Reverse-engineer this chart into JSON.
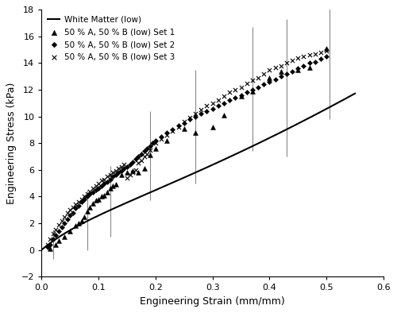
{
  "title": "",
  "xlabel": "Engineering Strain (mm/mm)",
  "ylabel": "Engineering Stress (kPa)",
  "xlim": [
    0.0,
    0.6
  ],
  "ylim": [
    -2,
    18
  ],
  "xticks": [
    0.0,
    0.1,
    0.2,
    0.3,
    0.4,
    0.5,
    0.6
  ],
  "yticks": [
    -2,
    0,
    2,
    4,
    6,
    8,
    10,
    12,
    14,
    16,
    18
  ],
  "legend_labels": [
    "White Matter (low)",
    "50 % A, 50 % B (low) Set 1",
    "50 % A, 50 % B (low) Set 2",
    "50 % A, 50 % B (low) Set 3"
  ],
  "curve_color": "black",
  "curve_lw": 1.5,
  "curve_A": 35.0,
  "curve_B": 8.0,
  "set1_x": [
    0.015,
    0.025,
    0.03,
    0.04,
    0.05,
    0.06,
    0.065,
    0.07,
    0.075,
    0.08,
    0.085,
    0.09,
    0.095,
    0.1,
    0.105,
    0.11,
    0.115,
    0.12,
    0.125,
    0.13,
    0.14,
    0.15,
    0.16,
    0.17,
    0.18,
    0.19,
    0.2,
    0.22,
    0.25,
    0.27,
    0.3,
    0.32,
    0.35,
    0.37,
    0.4,
    0.42,
    0.45,
    0.47,
    0.5
  ],
  "set1_y": [
    0.1,
    0.4,
    0.7,
    1.0,
    1.4,
    1.8,
    2.0,
    2.2,
    2.5,
    2.9,
    3.2,
    3.5,
    3.7,
    3.8,
    4.0,
    4.1,
    4.3,
    4.6,
    4.8,
    4.9,
    5.6,
    5.8,
    5.9,
    5.8,
    6.1,
    7.1,
    7.6,
    8.2,
    9.1,
    8.8,
    9.2,
    10.1,
    11.5,
    11.9,
    12.9,
    13.4,
    13.5,
    13.7,
    15.1
  ],
  "set2_x": [
    0.01,
    0.015,
    0.02,
    0.025,
    0.03,
    0.035,
    0.04,
    0.045,
    0.05,
    0.055,
    0.06,
    0.065,
    0.07,
    0.075,
    0.08,
    0.085,
    0.09,
    0.095,
    0.1,
    0.105,
    0.11,
    0.115,
    0.12,
    0.125,
    0.13,
    0.135,
    0.14,
    0.145,
    0.15,
    0.155,
    0.16,
    0.165,
    0.17,
    0.175,
    0.18,
    0.185,
    0.19,
    0.195,
    0.2,
    0.21,
    0.22,
    0.23,
    0.24,
    0.25,
    0.26,
    0.27,
    0.28,
    0.29,
    0.3,
    0.31,
    0.32,
    0.33,
    0.34,
    0.35,
    0.36,
    0.37,
    0.38,
    0.39,
    0.4,
    0.41,
    0.42,
    0.43,
    0.44,
    0.45,
    0.46,
    0.47,
    0.48,
    0.49,
    0.5
  ],
  "set2_y": [
    0.2,
    0.4,
    0.8,
    1.1,
    1.4,
    1.7,
    2.0,
    2.3,
    2.6,
    2.8,
    3.1,
    3.3,
    3.6,
    3.8,
    4.0,
    4.2,
    4.3,
    4.5,
    4.6,
    4.8,
    5.0,
    5.1,
    5.3,
    5.5,
    5.6,
    5.8,
    5.9,
    6.1,
    6.2,
    6.4,
    6.6,
    6.8,
    7.0,
    7.2,
    7.4,
    7.6,
    7.8,
    8.0,
    8.2,
    8.5,
    8.8,
    9.0,
    9.3,
    9.5,
    9.8,
    10.0,
    10.2,
    10.4,
    10.6,
    10.8,
    11.0,
    11.2,
    11.4,
    11.6,
    11.8,
    12.0,
    12.2,
    12.4,
    12.6,
    12.8,
    13.0,
    13.2,
    13.4,
    13.6,
    13.8,
    14.0,
    14.1,
    14.3,
    14.5
  ],
  "set3_x": [
    0.01,
    0.015,
    0.02,
    0.025,
    0.03,
    0.035,
    0.04,
    0.045,
    0.05,
    0.055,
    0.06,
    0.065,
    0.07,
    0.075,
    0.08,
    0.085,
    0.09,
    0.095,
    0.1,
    0.105,
    0.11,
    0.115,
    0.12,
    0.125,
    0.13,
    0.135,
    0.14,
    0.145,
    0.15,
    0.155,
    0.16,
    0.165,
    0.17,
    0.175,
    0.18,
    0.185,
    0.19,
    0.2,
    0.21,
    0.22,
    0.23,
    0.24,
    0.25,
    0.26,
    0.27,
    0.28,
    0.29,
    0.3,
    0.31,
    0.32,
    0.33,
    0.34,
    0.35,
    0.36,
    0.37,
    0.38,
    0.39,
    0.4,
    0.41,
    0.42,
    0.43,
    0.44,
    0.45,
    0.46,
    0.47,
    0.48,
    0.49,
    0.5
  ],
  "set3_y": [
    0.4,
    0.8,
    1.2,
    1.5,
    1.9,
    2.2,
    2.5,
    2.8,
    3.0,
    3.2,
    3.4,
    3.6,
    3.8,
    4.0,
    4.2,
    4.4,
    4.6,
    4.8,
    5.0,
    5.2,
    5.3,
    5.5,
    5.6,
    5.8,
    5.9,
    6.1,
    6.2,
    6.4,
    5.4,
    5.6,
    5.8,
    6.0,
    6.5,
    6.7,
    7.0,
    7.2,
    7.5,
    8.0,
    8.3,
    8.6,
    8.9,
    9.2,
    9.6,
    9.9,
    10.2,
    10.5,
    10.8,
    11.0,
    11.2,
    11.5,
    11.8,
    12.0,
    12.2,
    12.5,
    12.7,
    12.9,
    13.2,
    13.5,
    13.7,
    13.8,
    14.0,
    14.2,
    14.4,
    14.5,
    14.6,
    14.7,
    14.8,
    14.9
  ],
  "errbar_x": [
    0.02,
    0.08,
    0.12,
    0.19,
    0.27,
    0.37,
    0.43,
    0.505
  ],
  "errbar_y": [
    0.3,
    2.5,
    3.8,
    7.2,
    9.5,
    12.2,
    11.8,
    14.8
  ],
  "errbar_lo": [
    1.0,
    2.5,
    2.8,
    3.5,
    4.5,
    4.8,
    4.8,
    5.0
  ],
  "errbar_hi": [
    1.2,
    2.0,
    2.5,
    3.2,
    4.0,
    4.5,
    5.5,
    5.5
  ],
  "bg_color": "#ffffff"
}
